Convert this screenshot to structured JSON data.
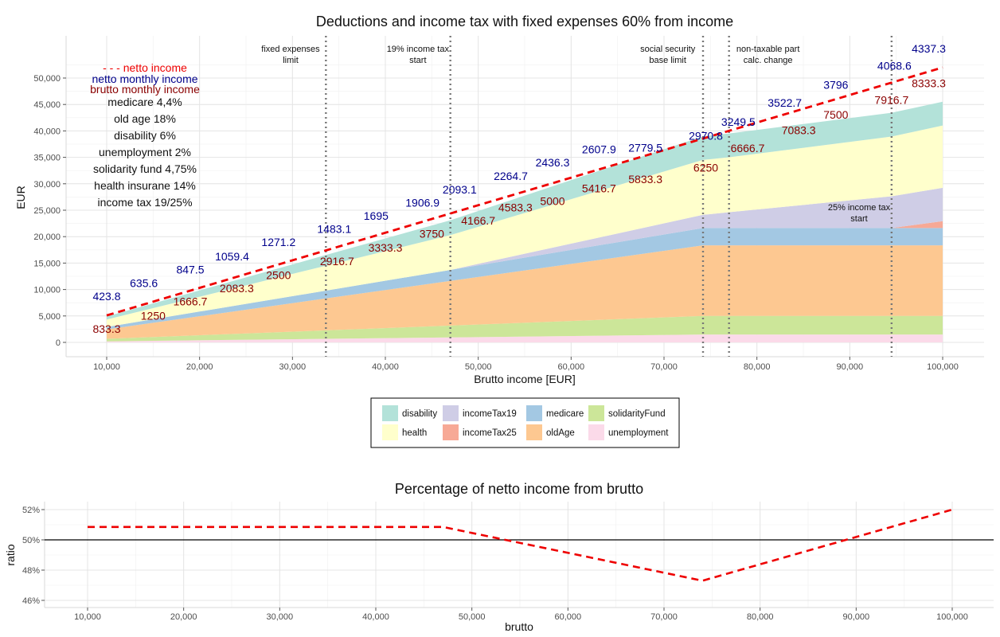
{
  "chart_data": [
    {
      "type": "area",
      "title": "Deductions and income tax with fixed expenses 60% from income",
      "xlabel": "Brutto income [EUR]",
      "ylabel": "EUR",
      "xlim": [
        10000,
        100000
      ],
      "ylim": [
        0,
        52000
      ],
      "x_ticks": [
        "10,000",
        "20,000",
        "30,000",
        "40,000",
        "50,000",
        "60,000",
        "70,000",
        "80,000",
        "90,000",
        "100,000"
      ],
      "y_ticks": [
        "0",
        "5,000",
        "10,000",
        "15,000",
        "20,000",
        "25,000",
        "30,000",
        "35,000",
        "40,000",
        "45,000",
        "50,000"
      ],
      "x": [
        10000,
        33600,
        47000,
        74200,
        77000,
        94500,
        100000
      ],
      "series": [
        {
          "name": "unemployment",
          "values": [
            200,
            672,
            940,
            1484,
            1484,
            1484,
            1484
          ]
        },
        {
          "name": "solidarityFund",
          "values": [
            475,
            1596,
            2233,
            3525,
            3525,
            3525,
            3525
          ]
        },
        {
          "name": "oldAge",
          "values": [
            1800,
            6048,
            8460,
            13356,
            13356,
            13356,
            13356
          ]
        },
        {
          "name": "medicare",
          "values": [
            440,
            1478,
            2068,
            3265,
            3265,
            3265,
            3265
          ]
        },
        {
          "name": "incomeTax25",
          "values": [
            0,
            0,
            0,
            0,
            0,
            0,
            1300
          ]
        },
        {
          "name": "incomeTax19",
          "values": [
            0,
            0,
            0,
            2500,
            3000,
            6000,
            6300
          ]
        },
        {
          "name": "health",
          "values": [
            1400,
            4704,
            6580,
            10388,
            10388,
            11300,
            11800
          ]
        },
        {
          "name": "disability",
          "values": [
            600,
            2016,
            2820,
            4452,
            4500,
            4500,
            4500
          ]
        }
      ],
      "netto_x": [
        10000,
        100000
      ],
      "netto_y": [
        5100,
        52000
      ],
      "vlines": [
        {
          "x": 33600,
          "label": [
            "fixed expenses",
            "limit"
          ],
          "label_x": 29800,
          "label_y": 55000
        },
        {
          "x": 47000,
          "label": [
            "19% income tax",
            "start"
          ],
          "label_x": 43500,
          "label_y": 55000
        },
        {
          "x": 74200,
          "label": [
            "social security",
            "base limit"
          ],
          "label_x": 70400,
          "label_y": 55000
        },
        {
          "x": 77000,
          "label": [
            "non-taxable part",
            "calc. change"
          ],
          "label_x": 81200,
          "label_y": 55000
        },
        {
          "x": 94500,
          "label": [
            "25% income tax",
            "start"
          ],
          "label_x": 91000,
          "label_y": 25000
        }
      ],
      "monthly_netto": [
        {
          "x": 10000,
          "y": 8000,
          "text": "423.8"
        },
        {
          "x": 14000,
          "y": 10500,
          "text": "635.6"
        },
        {
          "x": 19000,
          "y": 13000,
          "text": "847.5"
        },
        {
          "x": 23500,
          "y": 15500,
          "text": "1059.4"
        },
        {
          "x": 28500,
          "y": 18200,
          "text": "1271.2"
        },
        {
          "x": 34500,
          "y": 20700,
          "text": "1483.1"
        },
        {
          "x": 39000,
          "y": 23200,
          "text": "1695"
        },
        {
          "x": 44000,
          "y": 25700,
          "text": "1906.9"
        },
        {
          "x": 48000,
          "y": 28200,
          "text": "2093.1"
        },
        {
          "x": 53500,
          "y": 30700,
          "text": "2264.7"
        },
        {
          "x": 58000,
          "y": 33300,
          "text": "2436.3"
        },
        {
          "x": 63000,
          "y": 35800,
          "text": "2607.9"
        },
        {
          "x": 68000,
          "y": 36100,
          "text": "2779.5"
        },
        {
          "x": 74500,
          "y": 38300,
          "text": "2970.8"
        },
        {
          "x": 78000,
          "y": 41000,
          "text": "3249.5"
        },
        {
          "x": 83000,
          "y": 44600,
          "text": "3522.7"
        },
        {
          "x": 88500,
          "y": 48000,
          "text": "3796"
        },
        {
          "x": 94800,
          "y": 51600,
          "text": "4068.6"
        },
        {
          "x": 98500,
          "y": 54800,
          "text": "4337.3"
        }
      ],
      "monthly_brutto": [
        {
          "x": 10000,
          "y": 1800,
          "text": "833.3"
        },
        {
          "x": 15000,
          "y": 4300,
          "text": "1250"
        },
        {
          "x": 19000,
          "y": 7000,
          "text": "1666.7"
        },
        {
          "x": 24000,
          "y": 9500,
          "text": "2083.3"
        },
        {
          "x": 28500,
          "y": 12000,
          "text": "2500"
        },
        {
          "x": 34800,
          "y": 14600,
          "text": "2916.7"
        },
        {
          "x": 40000,
          "y": 17200,
          "text": "3333.3"
        },
        {
          "x": 45000,
          "y": 19800,
          "text": "3750"
        },
        {
          "x": 50000,
          "y": 22300,
          "text": "4166.7"
        },
        {
          "x": 54000,
          "y": 24800,
          "text": "4583.3"
        },
        {
          "x": 58000,
          "y": 26000,
          "text": "5000"
        },
        {
          "x": 63000,
          "y": 28400,
          "text": "5416.7"
        },
        {
          "x": 68000,
          "y": 30100,
          "text": "5833.3"
        },
        {
          "x": 74500,
          "y": 32300,
          "text": "6250"
        },
        {
          "x": 79000,
          "y": 36000,
          "text": "6666.7"
        },
        {
          "x": 84500,
          "y": 39400,
          "text": "7083.3"
        },
        {
          "x": 88500,
          "y": 42300,
          "text": "7500"
        },
        {
          "x": 94500,
          "y": 45100,
          "text": "7916.7"
        },
        {
          "x": 98500,
          "y": 48300,
          "text": "8333.3"
        }
      ],
      "info_text": {
        "netto_label": "- - - netto income",
        "netto_monthly_label": "netto monthly income",
        "brutto_monthly_label": "brutto monthly income",
        "rates": [
          "medicare 4,4%",
          "old age 18%",
          "disability 6%",
          "unemployment 2%",
          "solidarity fund 4,75%",
          "health insurane 14%",
          "income tax 19/25%"
        ]
      },
      "legend": {
        "placement": "bottom",
        "entries": [
          {
            "name": "disability",
            "color": "#b3e2d9"
          },
          {
            "name": "health",
            "color": "#ffffcc"
          },
          {
            "name": "incomeTax19",
            "color": "#cfcde6"
          },
          {
            "name": "incomeTax25",
            "color": "#f7a996"
          },
          {
            "name": "medicare",
            "color": "#a3c8e3"
          },
          {
            "name": "oldAge",
            "color": "#fdc891"
          },
          {
            "name": "solidarityFund",
            "color": "#cce699"
          },
          {
            "name": "unemployment",
            "color": "#fbdae9"
          }
        ]
      },
      "colors": {
        "netto_line": "#ee0000",
        "monthly_netto": "#00008b",
        "monthly_brutto": "#8b0000",
        "vlines": "#777777"
      },
      "grid": true
    },
    {
      "type": "line",
      "title": "Percentage of netto income from brutto",
      "xlabel": "brutto",
      "ylabel": "ratio",
      "xlim": [
        6000,
        104000
      ],
      "ylim": [
        45.8,
        52.2
      ],
      "x_ticks": [
        "10,000",
        "20,000",
        "30,000",
        "40,000",
        "50,000",
        "60,000",
        "70,000",
        "80,000",
        "90,000",
        "100,000"
      ],
      "y_ticks": [
        "46%",
        "48%",
        "50%",
        "52%"
      ],
      "x": [
        10000,
        47000,
        74000,
        100000
      ],
      "y": [
        50.85,
        50.85,
        47.3,
        52.0
      ],
      "hline": 50,
      "colors": {
        "line": "#ee0000"
      },
      "grid": true
    }
  ]
}
